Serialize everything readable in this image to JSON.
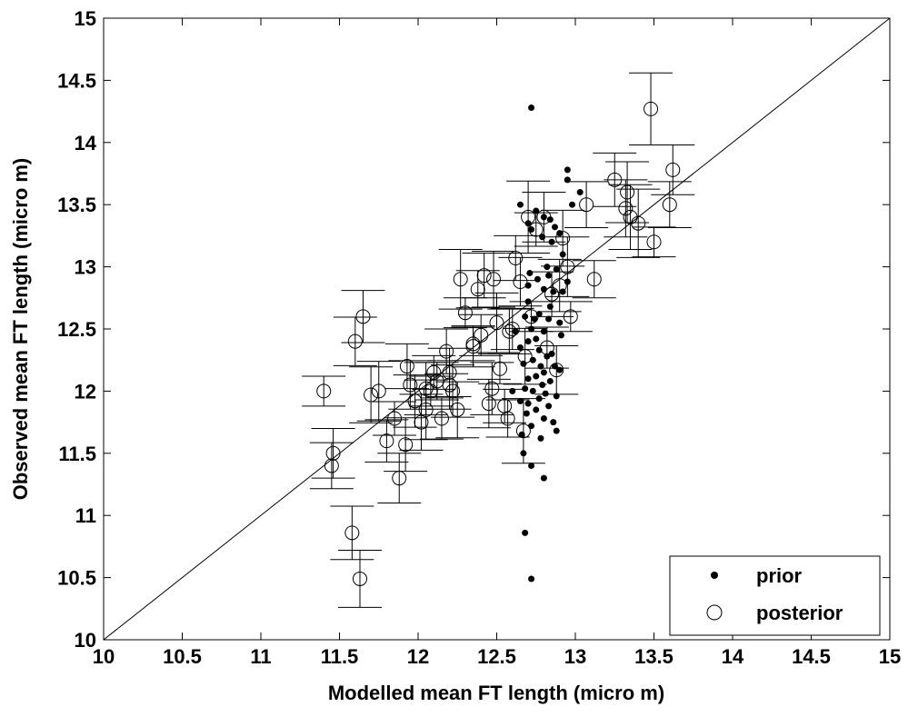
{
  "chart_data": {
    "type": "scatter",
    "title": "",
    "xlabel": "Modelled mean FT length (micro m)",
    "ylabel": "Observed mean FT length (micro m)",
    "xlim": [
      10,
      15
    ],
    "ylim": [
      10,
      15
    ],
    "xticks": [
      "10",
      "10.5",
      "11",
      "11.5",
      "12",
      "12.5",
      "13",
      "13.5",
      "14",
      "14.5",
      "15"
    ],
    "yticks": [
      "10",
      "10.5",
      "11",
      "11.5",
      "12",
      "12.5",
      "13",
      "13.5",
      "14",
      "14.5",
      "15"
    ],
    "reference_line": "y = x",
    "grid": false,
    "legend_position": "bottom-right",
    "series": [
      {
        "name": "prior",
        "marker": "filled-dot",
        "points": [
          [
            12.72,
            14.28
          ],
          [
            12.68,
            10.86
          ],
          [
            12.72,
            10.49
          ],
          [
            12.95,
            13.78
          ],
          [
            12.95,
            13.7
          ],
          [
            13.03,
            13.6
          ],
          [
            12.65,
            13.5
          ],
          [
            12.75,
            13.45
          ],
          [
            12.8,
            13.4
          ],
          [
            12.84,
            13.38
          ],
          [
            12.98,
            13.5
          ],
          [
            12.87,
            13.32
          ],
          [
            12.7,
            13.35
          ],
          [
            12.72,
            13.3
          ],
          [
            12.79,
            13.24
          ],
          [
            12.85,
            13.2
          ],
          [
            12.9,
            13.27
          ],
          [
            12.92,
            13.1
          ],
          [
            12.82,
            13.0
          ],
          [
            12.88,
            12.98
          ],
          [
            12.83,
            12.93
          ],
          [
            12.76,
            12.9
          ],
          [
            12.7,
            12.85
          ],
          [
            12.8,
            12.82
          ],
          [
            12.92,
            12.8
          ],
          [
            12.86,
            12.8
          ],
          [
            12.7,
            12.72
          ],
          [
            12.68,
            12.6
          ],
          [
            12.77,
            12.62
          ],
          [
            12.83,
            12.58
          ],
          [
            12.9,
            12.55
          ],
          [
            12.72,
            12.5
          ],
          [
            12.8,
            12.48
          ],
          [
            12.75,
            12.42
          ],
          [
            12.7,
            12.4
          ],
          [
            12.65,
            12.35
          ],
          [
            12.77,
            12.33
          ],
          [
            12.85,
            12.3
          ],
          [
            12.82,
            12.28
          ],
          [
            12.73,
            12.25
          ],
          [
            12.67,
            12.22
          ],
          [
            12.78,
            12.2
          ],
          [
            12.87,
            12.2
          ],
          [
            12.9,
            12.17
          ],
          [
            12.8,
            12.15
          ],
          [
            12.75,
            12.12
          ],
          [
            12.7,
            12.1
          ],
          [
            12.84,
            12.08
          ],
          [
            12.79,
            12.05
          ],
          [
            12.68,
            12.02
          ],
          [
            12.73,
            12.0
          ],
          [
            12.81,
            11.98
          ],
          [
            12.88,
            11.96
          ],
          [
            12.77,
            11.94
          ],
          [
            12.65,
            11.92
          ],
          [
            12.7,
            11.9
          ],
          [
            12.83,
            11.88
          ],
          [
            12.75,
            11.85
          ],
          [
            12.69,
            11.82
          ],
          [
            12.8,
            11.78
          ],
          [
            12.86,
            11.75
          ],
          [
            12.72,
            11.72
          ],
          [
            12.66,
            11.65
          ],
          [
            12.78,
            11.62
          ],
          [
            12.67,
            11.5
          ],
          [
            12.72,
            11.4
          ],
          [
            12.8,
            11.3
          ],
          [
            12.88,
            11.68
          ],
          [
            12.91,
            12.45
          ],
          [
            12.6,
            12.0
          ],
          [
            12.62,
            12.48
          ],
          [
            12.74,
            12.58
          ],
          [
            12.84,
            12.68
          ],
          [
            12.95,
            12.88
          ],
          [
            12.71,
            12.95
          ]
        ]
      },
      {
        "name": "posterior",
        "marker": "open-circle",
        "points": [
          [
            11.4,
            12.0
          ],
          [
            11.45,
            11.4
          ],
          [
            11.46,
            11.5
          ],
          [
            11.58,
            10.86
          ],
          [
            11.63,
            10.49
          ],
          [
            11.6,
            12.4
          ],
          [
            11.65,
            12.6
          ],
          [
            11.7,
            11.97
          ],
          [
            11.75,
            12.0
          ],
          [
            11.8,
            11.6
          ],
          [
            11.85,
            11.78
          ],
          [
            11.88,
            11.3
          ],
          [
            11.92,
            11.57
          ],
          [
            11.93,
            12.2
          ],
          [
            11.95,
            12.05
          ],
          [
            11.98,
            11.92
          ],
          [
            12.02,
            11.75
          ],
          [
            12.05,
            11.85
          ],
          [
            12.08,
            12.0
          ],
          [
            12.1,
            12.15
          ],
          [
            12.12,
            12.08
          ],
          [
            12.15,
            11.78
          ],
          [
            12.18,
            12.32
          ],
          [
            12.2,
            12.15
          ],
          [
            12.22,
            12.0
          ],
          [
            12.25,
            11.85
          ],
          [
            12.27,
            12.9
          ],
          [
            12.3,
            12.63
          ],
          [
            12.35,
            12.38
          ],
          [
            12.38,
            12.82
          ],
          [
            12.4,
            12.45
          ],
          [
            12.42,
            12.93
          ],
          [
            12.45,
            11.9
          ],
          [
            12.47,
            12.02
          ],
          [
            12.48,
            12.9
          ],
          [
            12.5,
            12.55
          ],
          [
            12.52,
            12.18
          ],
          [
            12.55,
            11.88
          ],
          [
            12.57,
            11.78
          ],
          [
            12.6,
            12.5
          ],
          [
            12.62,
            13.07
          ],
          [
            12.65,
            12.88
          ],
          [
            12.67,
            11.68
          ],
          [
            12.68,
            12.28
          ],
          [
            12.7,
            13.4
          ],
          [
            12.72,
            12.6
          ],
          [
            12.75,
            13.3
          ],
          [
            12.8,
            13.4
          ],
          [
            12.82,
            12.35
          ],
          [
            12.85,
            12.78
          ],
          [
            12.88,
            12.17
          ],
          [
            12.9,
            12.85
          ],
          [
            12.92,
            13.23
          ],
          [
            12.95,
            13.0
          ],
          [
            12.97,
            12.6
          ],
          [
            13.07,
            13.5
          ],
          [
            13.12,
            12.9
          ],
          [
            13.25,
            13.7
          ],
          [
            13.32,
            13.47
          ],
          [
            13.33,
            13.6
          ],
          [
            13.35,
            13.4
          ],
          [
            13.4,
            13.35
          ],
          [
            13.48,
            14.27
          ],
          [
            13.5,
            13.2
          ],
          [
            13.6,
            13.5
          ],
          [
            13.62,
            13.78
          ],
          [
            12.35,
            12.36
          ],
          [
            12.58,
            12.48
          ],
          [
            12.2,
            12.05
          ],
          [
            12.05,
            12.02
          ]
        ]
      }
    ]
  }
}
